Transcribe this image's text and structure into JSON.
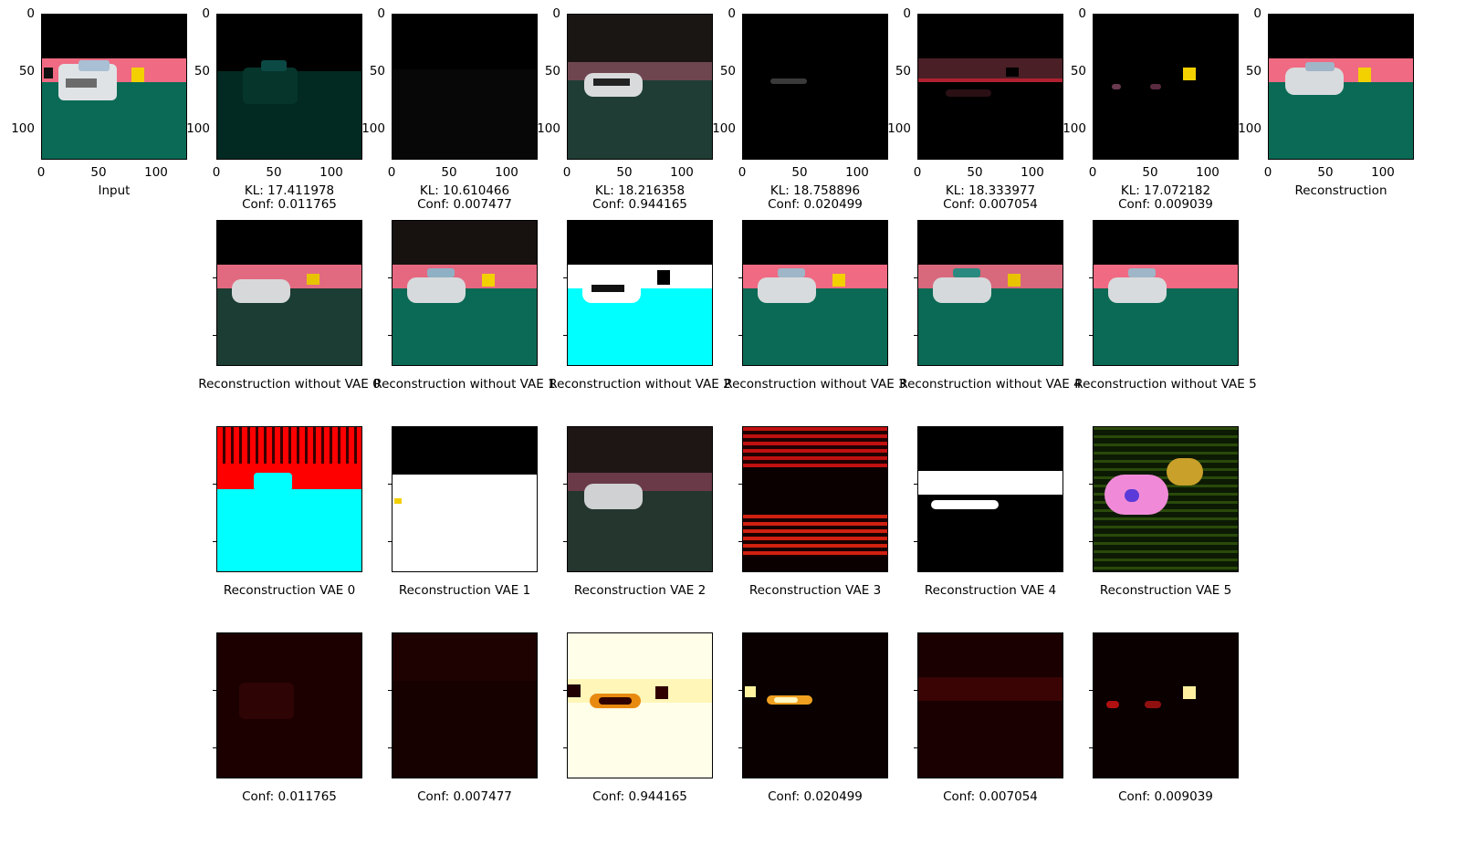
{
  "row1": {
    "input_caption": "Input",
    "reconstruction_caption": "Reconstruction",
    "vae_panels": [
      {
        "kl": "KL: 17.411978",
        "conf": "Conf: 0.011765"
      },
      {
        "kl": "KL: 10.610466",
        "conf": "Conf: 0.007477"
      },
      {
        "kl": "KL: 18.216358",
        "conf": "Conf: 0.944165"
      },
      {
        "kl": "KL: 18.758896",
        "conf": "Conf: 0.020499"
      },
      {
        "kl": "KL: 18.333977",
        "conf": "Conf: 0.007054"
      },
      {
        "kl": "KL: 17.072182",
        "conf": "Conf: 0.009039"
      }
    ],
    "x_ticks": [
      "0",
      "50",
      "100"
    ],
    "y_ticks": [
      "0",
      "50",
      "100"
    ]
  },
  "row2": {
    "captions": [
      "Reconstruction without VAE 0",
      "Reconstruction without VAE 1",
      "Reconstruction without VAE 2",
      "Reconstruction without VAE 3",
      "Reconstruction without VAE 4",
      "Reconstruction without VAE 5"
    ]
  },
  "row3": {
    "captions": [
      "Reconstruction VAE 0",
      "Reconstruction VAE 1",
      "Reconstruction VAE 2",
      "Reconstruction VAE 3",
      "Reconstruction VAE 4",
      "Reconstruction VAE 5"
    ]
  },
  "row4": {
    "captions": [
      "Conf: 0.011765",
      "Conf: 0.007477",
      "Conf: 0.944165",
      "Conf: 0.020499",
      "Conf: 0.007054",
      "Conf: 0.009039"
    ]
  },
  "colors": {
    "sky": "#000000",
    "wall": "#ef6a82",
    "ground": "#0b6a55",
    "truck": "#e9ecee",
    "cyan": "#00ffff",
    "red": "#ff0000",
    "yellow": "#f3d000",
    "heat_bg": "#2a0000",
    "heat_light": "#ffffe0"
  }
}
